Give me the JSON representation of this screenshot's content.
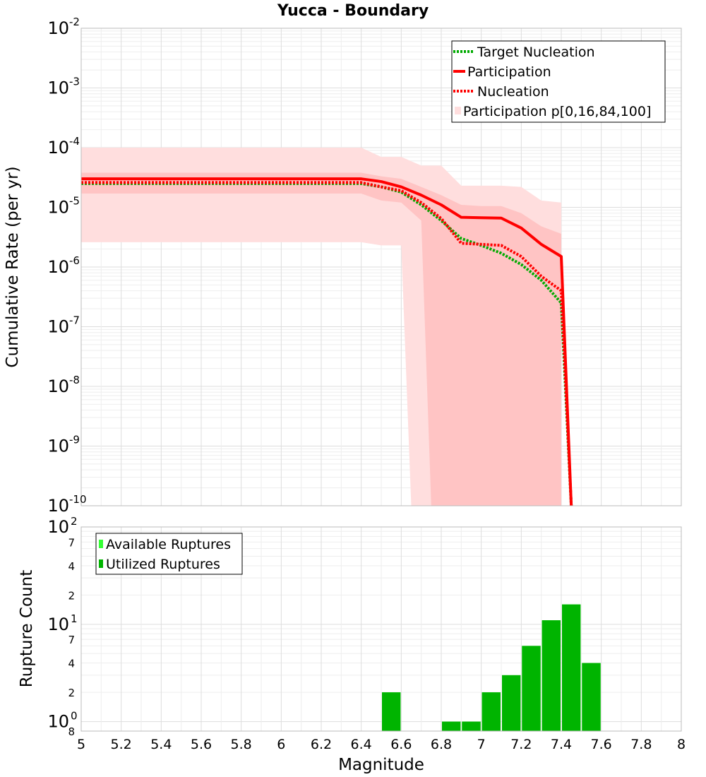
{
  "title": "Yucca - Boundary",
  "xlabel": "Magnitude",
  "colors": {
    "target": "#00aa00",
    "participation": "#ff0000",
    "nucleation": "#ff0000",
    "band_outer": "#ffdede",
    "band_inner": "#ffc4c4",
    "available": "#33ff33",
    "utilized": "#00b400"
  },
  "chart_data": [
    {
      "type": "line",
      "title": "Yucca - Boundary",
      "ylabel": "Cumulative Rate (per yr)",
      "yscale": "log",
      "xlim": [
        5,
        8
      ],
      "ylim": [
        1e-10,
        0.01
      ],
      "y_tick_labels": [
        {
          "base": "10",
          "exp": "-2"
        },
        {
          "base": "10",
          "exp": "-3"
        },
        {
          "base": "10",
          "exp": "-4"
        },
        {
          "base": "10",
          "exp": "-5"
        },
        {
          "base": "10",
          "exp": "-6"
        },
        {
          "base": "10",
          "exp": "-7"
        },
        {
          "base": "10",
          "exp": "-8"
        },
        {
          "base": "10",
          "exp": "-9"
        },
        {
          "base": "10",
          "exp": "-10"
        }
      ],
      "grid": true,
      "legend_position": "top-right",
      "legend": [
        "Target Nucleation",
        "Participation",
        "Nucleation",
        "Participation p[0,16,84,100]"
      ],
      "series": [
        {
          "name": "Target Nucleation",
          "style": "dotted",
          "x": [
            5.0,
            6.4,
            6.5,
            6.6,
            6.7,
            6.8,
            6.9,
            7.0,
            7.1,
            7.2,
            7.3,
            7.4,
            7.45
          ],
          "y": [
            2.5e-05,
            2.5e-05,
            2.2e-05,
            1.8e-05,
            1.1e-05,
            6e-06,
            3e-06,
            2.3e-06,
            1.7e-06,
            1.1e-06,
            6e-07,
            2.5e-07,
            1e-10
          ]
        },
        {
          "name": "Participation",
          "style": "solid",
          "x": [
            5.0,
            6.4,
            6.5,
            6.6,
            6.7,
            6.8,
            6.9,
            7.0,
            7.1,
            7.2,
            7.3,
            7.4,
            7.45
          ],
          "y": [
            3e-05,
            3e-05,
            2.7e-05,
            2.2e-05,
            1.6e-05,
            1.1e-05,
            6.8e-06,
            6.7e-06,
            6.6e-06,
            4.5e-06,
            2.4e-06,
            1.5e-06,
            1e-10
          ]
        },
        {
          "name": "Nucleation",
          "style": "dotted",
          "x": [
            5.0,
            6.4,
            6.5,
            6.6,
            6.7,
            6.8,
            6.9,
            7.0,
            7.1,
            7.2,
            7.3,
            7.4,
            7.45
          ],
          "y": [
            2.6e-05,
            2.6e-05,
            2.2e-05,
            1.9e-05,
            1.2e-05,
            6.5e-06,
            2.5e-06,
            2.4e-06,
            2.3e-06,
            1.5e-06,
            7e-07,
            4e-07,
            1e-10
          ]
        }
      ],
      "bands": [
        {
          "name": "Participation p[0,16,84,100]",
          "level": "p0-p100",
          "x": [
            5.0,
            6.4,
            6.5,
            6.6,
            6.7,
            6.8,
            6.9,
            7.0,
            7.1,
            7.2,
            7.3,
            7.4
          ],
          "upper": [
            0.0001,
            0.0001,
            7e-05,
            7e-05,
            5e-05,
            5e-05,
            2.3e-05,
            2.3e-05,
            2.3e-05,
            2.2e-05,
            1.3e-05,
            1.2e-05
          ],
          "lower": [
            2.6e-06,
            2.6e-06,
            2.3e-06,
            2.3e-06,
            1e-10,
            1e-10,
            1e-10,
            1e-10,
            1e-10,
            1e-10,
            1e-10,
            1e-10
          ],
          "lower_drop_x": 6.65
        },
        {
          "name": "Participation p[0,16,84,100]",
          "level": "p16-p84",
          "x": [
            5.0,
            6.4,
            6.5,
            6.6,
            6.7,
            6.8,
            6.9,
            7.0,
            7.1,
            7.2,
            7.3,
            7.4
          ],
          "upper": [
            3.8e-05,
            3.8e-05,
            3.3e-05,
            3e-05,
            2.2e-05,
            1.6e-05,
            1.1e-05,
            1.05e-05,
            1.05e-05,
            8e-06,
            4.8e-06,
            3.6e-06
          ],
          "lower": [
            1.7e-05,
            1.7e-05,
            1.3e-05,
            1.2e-05,
            6e-06,
            1e-10,
            1e-10,
            1e-10,
            1e-10,
            1e-10,
            1e-10,
            1e-10
          ],
          "lower_drop_x": 6.75
        }
      ]
    },
    {
      "type": "bar",
      "ylabel": "Rupture Count",
      "yscale": "log",
      "xlim": [
        5,
        8
      ],
      "ylim": [
        0.8,
        100
      ],
      "y_tick_labels": [
        {
          "base": "10",
          "exp": "2"
        },
        {
          "base": "10",
          "exp": "1"
        },
        {
          "base": "10",
          "exp": "0"
        }
      ],
      "y_minor_labels": [
        "7",
        "4",
        "2",
        "7",
        "4",
        "2",
        "8"
      ],
      "x_ticks": [
        "5",
        "5.2",
        "5.4",
        "5.6",
        "5.8",
        "6",
        "6.2",
        "6.4",
        "6.6",
        "6.8",
        "7",
        "7.2",
        "7.4",
        "7.6",
        "7.8",
        "8"
      ],
      "grid": true,
      "legend_position": "top-left",
      "legend": [
        "Available Ruptures",
        "Utilized Ruptures"
      ],
      "series": [
        {
          "name": "Available Ruptures",
          "x": [
            6.55,
            6.85,
            6.95,
            7.05,
            7.15,
            7.25,
            7.35,
            7.45,
            7.55
          ],
          "values": [
            2,
            1,
            1,
            2,
            3,
            6,
            11,
            16,
            4
          ]
        },
        {
          "name": "Utilized Ruptures",
          "x": [
            6.55,
            6.85,
            6.95,
            7.05,
            7.15,
            7.25,
            7.35,
            7.45,
            7.55
          ],
          "values": [
            2,
            1,
            1,
            2,
            3,
            6,
            11,
            16,
            4
          ]
        }
      ]
    }
  ]
}
